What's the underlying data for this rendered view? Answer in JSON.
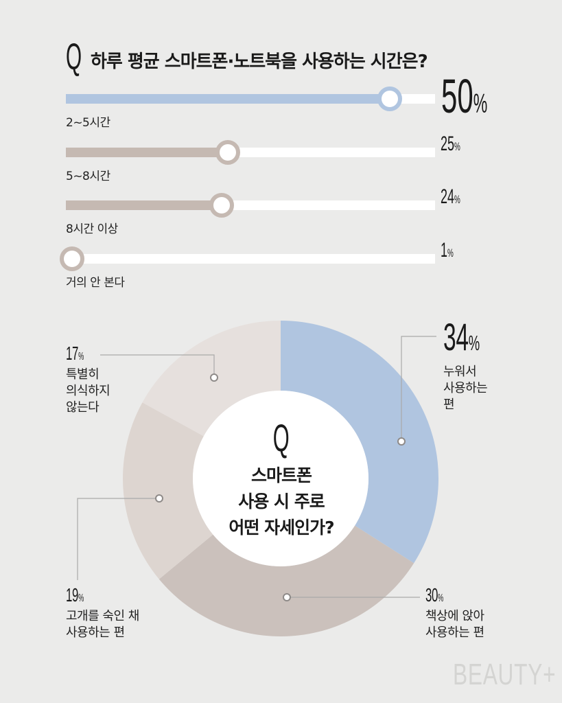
{
  "question1": {
    "q": "Q",
    "text": "하루 평균 스마트폰·노트북을 사용하는 시간은?"
  },
  "question2": {
    "q": "Q",
    "text": "스마트폰\n사용 시 주로\n어떤 자세인가?"
  },
  "brand": "BEAUTY+",
  "colors": {
    "blue": "#b0c5e0",
    "taupe": "#c5b9b2",
    "taupe_light": "#d8cfca",
    "light": "#e6e0dd",
    "white": "#ffffff",
    "background": "#ebebea"
  },
  "chart_data": [
    {
      "type": "bar",
      "title": "하루 평균 스마트폰·노트북을 사용하는 시간은?",
      "categories": [
        "2~5시간",
        "5~8시간",
        "8시간 이상",
        "거의 안 본다"
      ],
      "values": [
        50,
        25,
        24,
        1
      ],
      "value_labels": [
        "50",
        "25",
        "24",
        "1"
      ],
      "unit": "%",
      "bar_colors": [
        "#b0c5e0",
        "#c5b9b2",
        "#c5b9b2",
        "#c5b9b2"
      ],
      "xlim": [
        0,
        57
      ]
    },
    {
      "type": "pie",
      "title": "스마트폰 사용 시 주로 어떤 자세인가?",
      "labels": [
        "누워서\n사용하는\n편",
        "책상에 앉아\n사용하는 편",
        "고개를 숙인 채\n사용하는 편",
        "특별히\n의식하지\n않는다"
      ],
      "values": [
        34,
        30,
        19,
        17
      ],
      "value_labels": [
        "34",
        "30",
        "19",
        "17"
      ],
      "unit": "%",
      "colors": [
        "#b0c5e0",
        "#cbc1bc",
        "#ddd5d0",
        "#e6e0dd"
      ]
    }
  ]
}
